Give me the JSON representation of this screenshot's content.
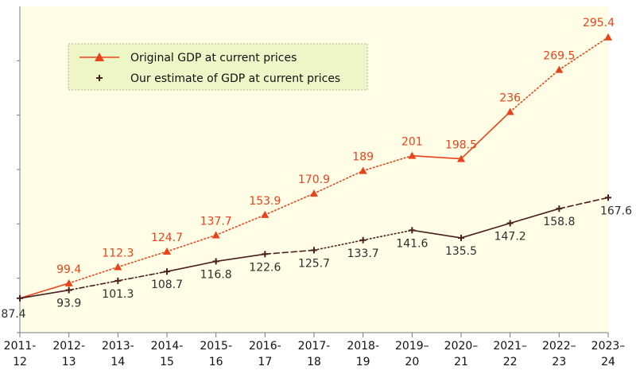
{
  "colors": {
    "plot_background": "#fffde6",
    "legend_background": "#eef6c8",
    "original": "#e8431a",
    "estimate": "#4a1f1f"
  },
  "chart_data": {
    "type": "line",
    "title": "",
    "xlabel": "",
    "ylabel": "",
    "categories": [
      "2011-12",
      "2012-13",
      "2013-14",
      "2014-15",
      "2015-16",
      "2016-17",
      "2017-18",
      "2018-19",
      "2019-20",
      "2020-21",
      "2021-22",
      "2022-23",
      "2023-24"
    ],
    "tick_labels": [
      [
        "2011-",
        "12"
      ],
      [
        "2012-",
        "13"
      ],
      [
        "2013-",
        "14"
      ],
      [
        "2014-",
        "15"
      ],
      [
        "2015-",
        "16"
      ],
      [
        "2016-",
        "17"
      ],
      [
        "2017-",
        "18"
      ],
      [
        "2018-",
        "19"
      ],
      [
        "2019–",
        "20"
      ],
      [
        "2020–",
        "21"
      ],
      [
        "2021–",
        "22"
      ],
      [
        "2022–",
        "23"
      ],
      [
        "2023–",
        "24"
      ]
    ],
    "ylim": [
      60,
      320
    ],
    "grid": false,
    "legend_position": "top-left",
    "series": [
      {
        "name": "Original GDP at current prices",
        "marker": "triangle",
        "values": [
          87.4,
          99.4,
          112.3,
          124.7,
          137.7,
          153.9,
          170.9,
          189,
          201,
          198.5,
          236,
          269.5,
          295.4
        ],
        "labels": [
          "",
          "99.4",
          "112.3",
          "124.7",
          "137.7",
          "153.9",
          "170.9",
          "189",
          "201",
          "198.5",
          "236",
          "269.5",
          "295.4"
        ],
        "line_styles": [
          "solid",
          "dotted",
          "dotted",
          "dotted",
          "dotted",
          "dotted",
          "dotted",
          "dotted",
          "solid",
          "solid",
          "dotted",
          "dotted"
        ]
      },
      {
        "name": "Our estimate of GDP at current prices",
        "marker": "plus",
        "values": [
          87.4,
          93.9,
          101.3,
          108.7,
          116.8,
          122.6,
          125.7,
          133.7,
          141.6,
          135.5,
          147.2,
          158.8,
          167.6
        ],
        "labels": [
          "87.4",
          "93.9",
          "101.3",
          "108.7",
          "116.8",
          "122.6",
          "125.7",
          "133.7",
          "141.6",
          "135.5",
          "147.2",
          "158.8",
          "167.6"
        ],
        "line_styles": [
          "solid",
          "dashdot",
          "dashdot",
          "solid",
          "solid",
          "dashed",
          "dotted",
          "dotted",
          "solid",
          "solid",
          "solid",
          "dashed"
        ]
      }
    ]
  }
}
